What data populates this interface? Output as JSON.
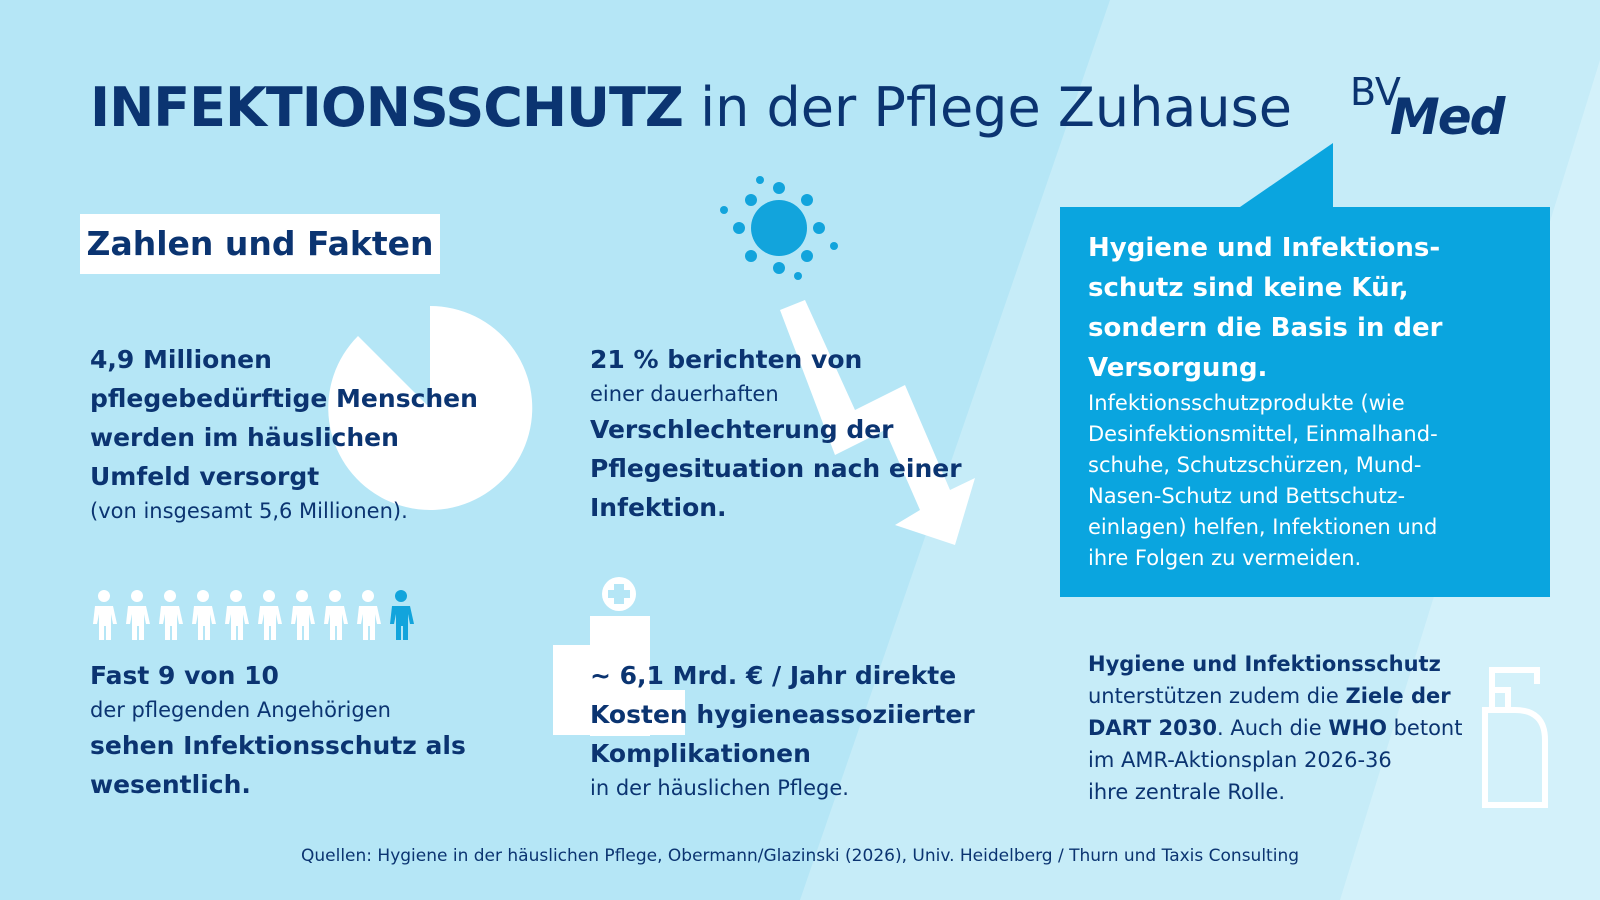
{
  "header": {
    "title_bold": "INFEKTIONSSCHUTZ",
    "title_rest": "in der Pflege Zuhause",
    "logo_top": "BV",
    "logo_main": "Med"
  },
  "section_label": "Zahlen und Fakten",
  "facts": [
    {
      "bold": [
        "4,9 Millionen",
        "pflegebedürftige Menschen",
        "werden im häuslichen",
        "Umfeld versorgt"
      ],
      "normal": [
        "(von insgesamt 5,6 Millionen)."
      ]
    },
    {
      "bold": [
        "Fast 9 von 10"
      ],
      "normal": [
        "der pflegenden Angehörigen"
      ],
      "bold2": [
        "sehen Infektionsschutz als",
        "wesentlich."
      ]
    },
    {
      "bold": [
        "21 % berichten von"
      ],
      "normal": [
        "einer dauerhaften"
      ],
      "bold2": [
        "Verschlechterung der",
        "Pflegesituation nach einer",
        "Infektion."
      ]
    },
    {
      "bold": [
        "~ 6,1 Mrd. € / Jahr direkte",
        "Kosten hygieneassoziierter",
        "Komplikationen"
      ],
      "normal": [
        "in der häuslichen Pflege."
      ]
    }
  ],
  "callout": {
    "heading": [
      "Hygiene und Infektions-",
      "schutz sind keine Kür,",
      "sondern die Basis in der",
      "Versorgung."
    ],
    "body": [
      "Infektionsschutzprodukte (wie",
      "Desinfektionsmittel, Einmalhand-",
      "schuhe, Schutzschürzen, Mund-",
      "Nasen-Schutz und Bettschutz-",
      "einlagen) helfen, Infektionen und",
      "ihre Folgen zu vermeiden."
    ]
  },
  "note": {
    "lines": [
      [
        {
          "text": "Hygiene und Infektionsschutz",
          "bold": true
        }
      ],
      [
        {
          "text": "unterstützen zudem die ",
          "bold": false
        },
        {
          "text": "Ziele der",
          "bold": true
        }
      ],
      [
        {
          "text": "DART 2030",
          "bold": true
        },
        {
          "text": ". Auch die ",
          "bold": false
        },
        {
          "text": "WHO",
          "bold": true
        },
        {
          "text": " betont",
          "bold": false
        }
      ],
      [
        {
          "text": "im AMR-Aktionsplan 2026-36",
          "bold": false
        }
      ],
      [
        {
          "text": "ihre zentrale Rolle.",
          "bold": false
        }
      ]
    ]
  },
  "source": "Quellen: Hygiene in der häuslichen Pflege, Obermann/Glazinski (2026), Univ. Heidelberg / Thurn und Taxis Consulting"
}
